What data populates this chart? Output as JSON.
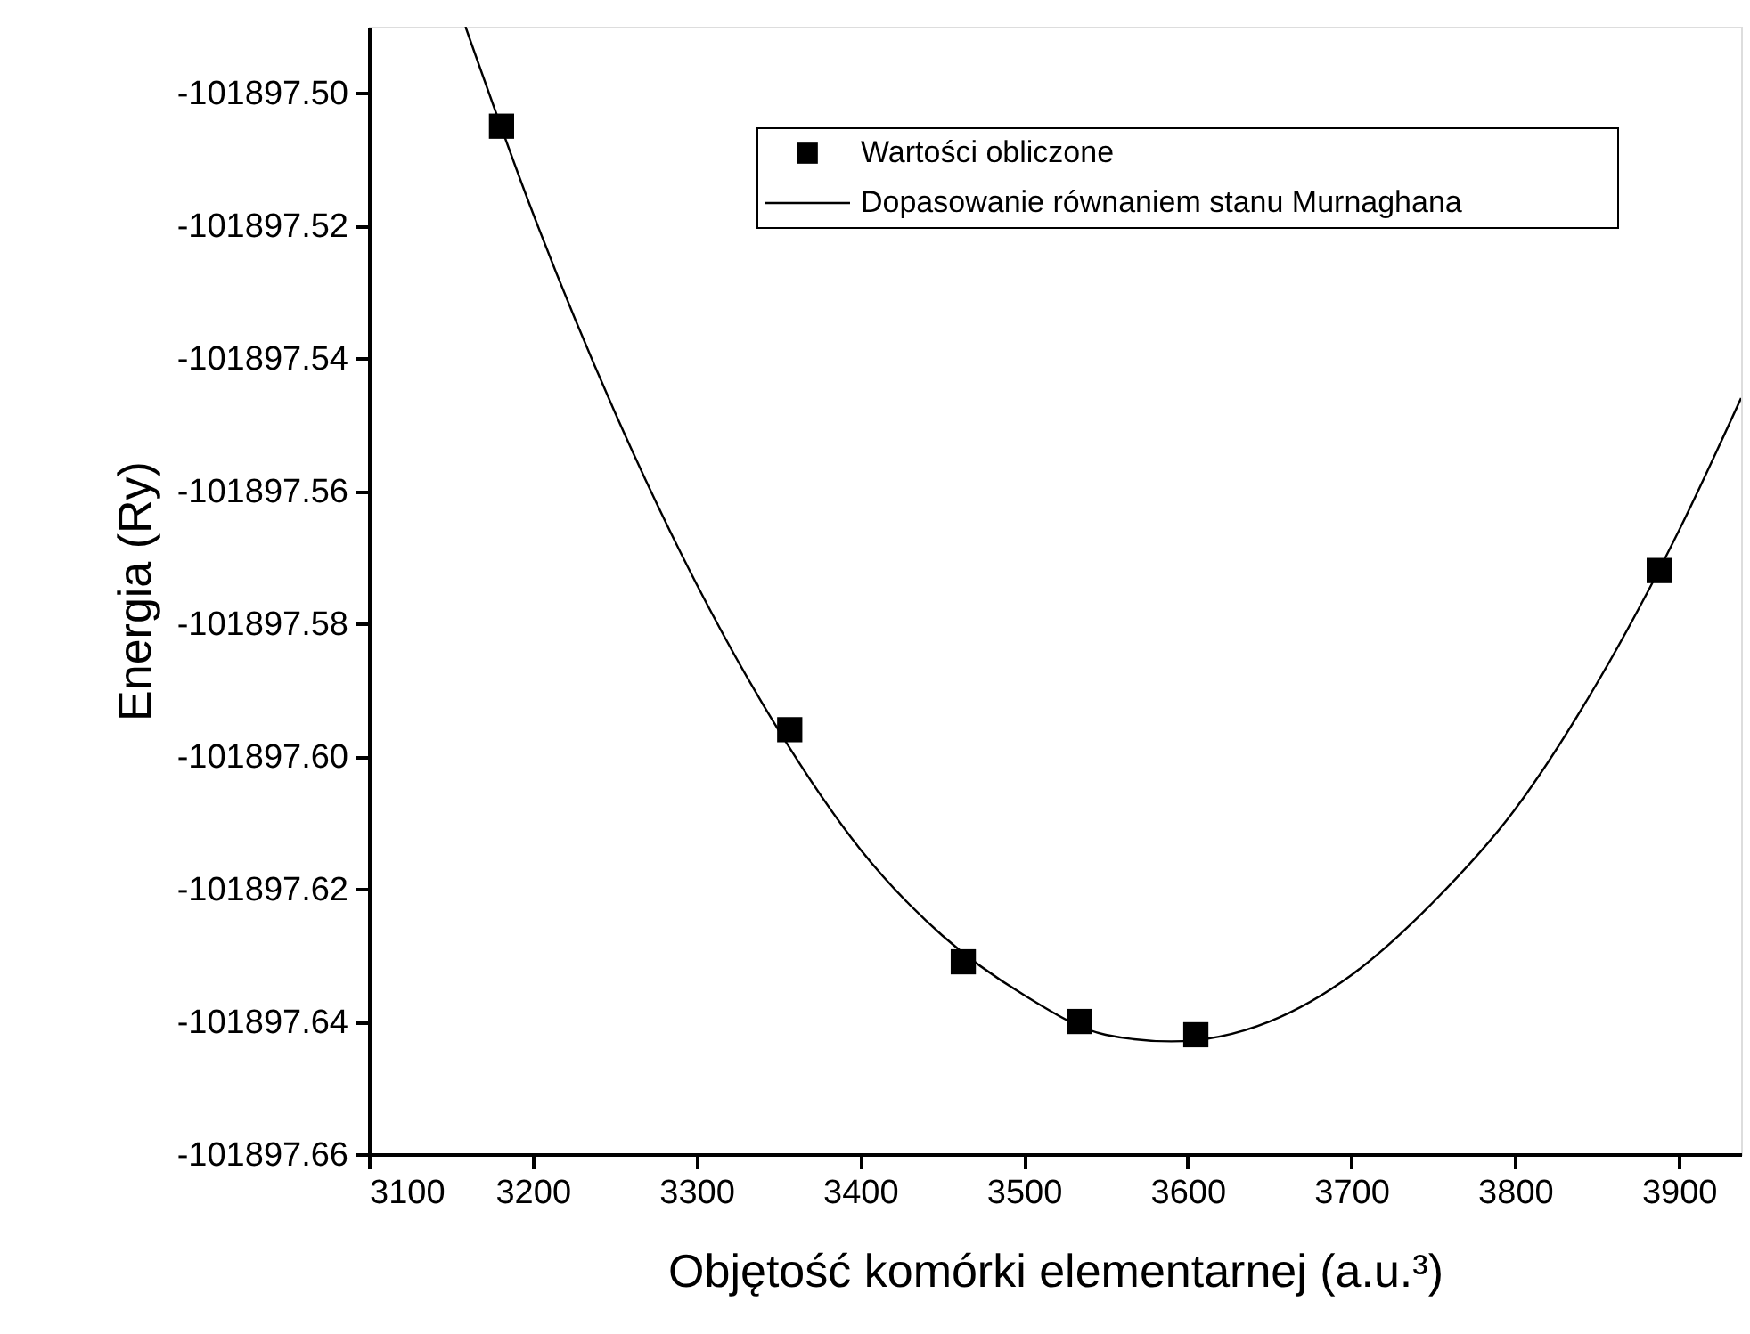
{
  "chart_data": {
    "type": "scatter",
    "xlabel": "Objętość komórki elementarnej (a.u.³)",
    "ylabel": "Energia (Ry)",
    "xlim": [
      3100,
      3938
    ],
    "ylim": [
      -101897.66,
      -101897.49
    ],
    "xticks": [
      3100,
      3200,
      3300,
      3400,
      3500,
      3600,
      3700,
      3800,
      3900
    ],
    "yticks": [
      {
        "value": -101897.66,
        "label": "-101897.66"
      },
      {
        "value": -101897.64,
        "label": "-101897.64"
      },
      {
        "value": -101897.62,
        "label": "-101897.62"
      },
      {
        "value": -101897.6,
        "label": "-101897.60"
      },
      {
        "value": -101897.58,
        "label": "-101897.58"
      },
      {
        "value": -101897.56,
        "label": "-101897.56"
      },
      {
        "value": -101897.54,
        "label": "-101897.54"
      },
      {
        "value": -101897.52,
        "label": "-101897.52"
      },
      {
        "value": -101897.5,
        "label": "-101897.50"
      }
    ],
    "grid": false,
    "legend": "top right",
    "series": [
      {
        "name": "Wartości obliczone",
        "marker": "square",
        "color": "#000000",
        "x": [
          3181,
          3357,
          3463,
          3534,
          3605,
          3888
        ],
        "values": [
          -101897.505,
          -101897.596,
          -101897.631,
          -101897.64,
          -101897.642,
          -101897.572
        ]
      },
      {
        "name": "Dopasowanie równaniem stanu Murnaghana",
        "type": "line",
        "marker": "none",
        "line_style": "solid",
        "color": "#000000",
        "x": [
          3159,
          3200,
          3250,
          3300,
          3350,
          3400,
          3450,
          3500,
          3550,
          3590,
          3650,
          3700,
          3750,
          3800,
          3850,
          3900,
          3938
        ],
        "values": [
          -101897.49,
          -101897.518,
          -101897.548,
          -101897.574,
          -101897.596,
          -101897.614,
          -101897.627,
          -101897.636,
          -101897.642,
          -101897.643,
          -101897.64,
          -101897.633,
          -101897.622,
          -101897.608,
          -101897.589,
          -101897.566,
          -101897.546
        ]
      }
    ]
  }
}
